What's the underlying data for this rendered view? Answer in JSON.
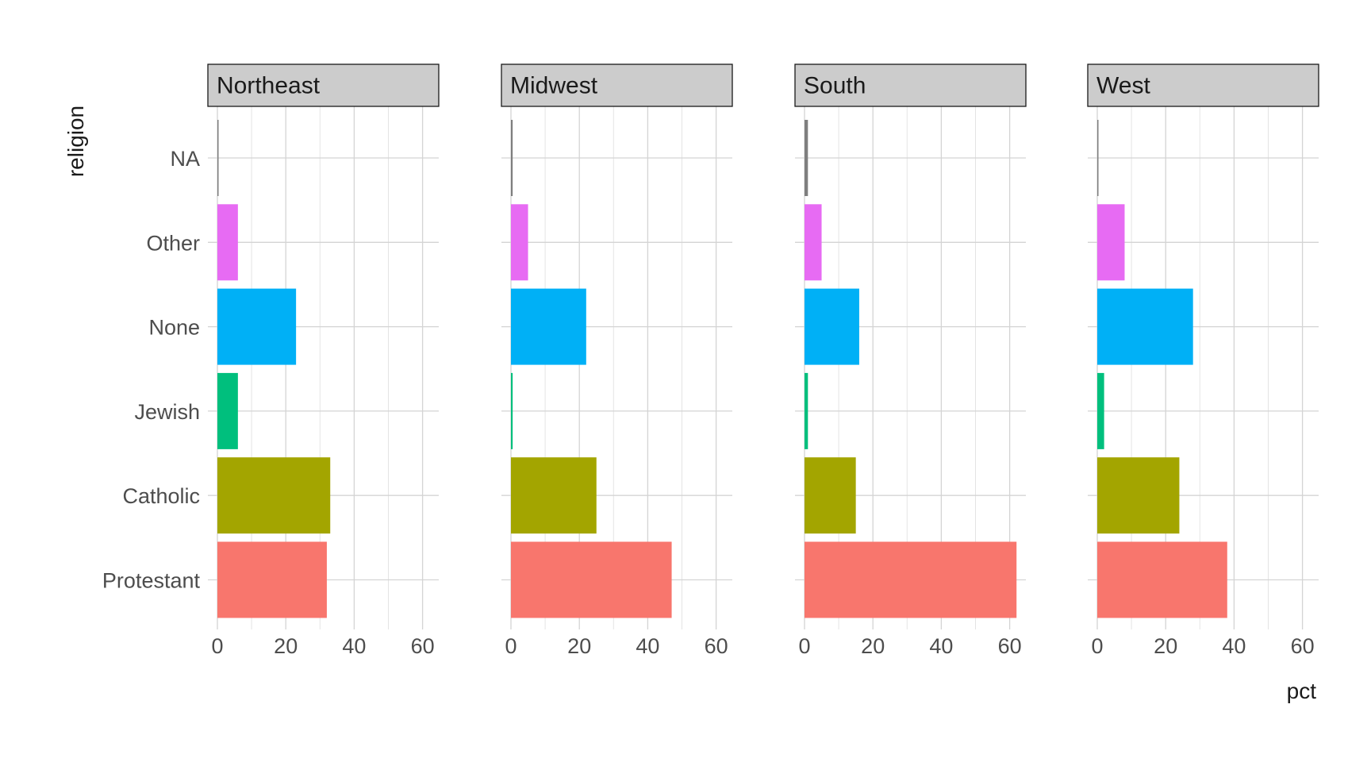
{
  "chart_data": {
    "type": "bar",
    "orientation": "horizontal",
    "facet_by": "region",
    "xlabel": "pct",
    "ylabel": "religion",
    "xlim": [
      0,
      65
    ],
    "x_ticks": [
      0,
      20,
      40,
      60
    ],
    "grid": true,
    "legend": "none",
    "categories": [
      "Protestant",
      "Catholic",
      "Jewish",
      "None",
      "Other",
      "NA"
    ],
    "category_colors": {
      "Protestant": "#F8766D",
      "Catholic": "#A3A500",
      "Jewish": "#00BF7D",
      "None": "#00B0F6",
      "Other": "#E76BF3",
      "NA": "#7F7F7F"
    },
    "panels": [
      {
        "region": "Northeast",
        "values": {
          "Protestant": 32,
          "Catholic": 33,
          "Jewish": 6,
          "None": 23,
          "Other": 6,
          "NA": 0
        }
      },
      {
        "region": "Midwest",
        "values": {
          "Protestant": 47,
          "Catholic": 25,
          "Jewish": 0.5,
          "None": 22,
          "Other": 5,
          "NA": 0.5
        }
      },
      {
        "region": "South",
        "values": {
          "Protestant": 62,
          "Catholic": 15,
          "Jewish": 1,
          "None": 16,
          "Other": 5,
          "NA": 1
        }
      },
      {
        "region": "West",
        "values": {
          "Protestant": 38,
          "Catholic": 24,
          "Jewish": 2,
          "None": 28,
          "Other": 8,
          "NA": 0
        }
      }
    ]
  }
}
